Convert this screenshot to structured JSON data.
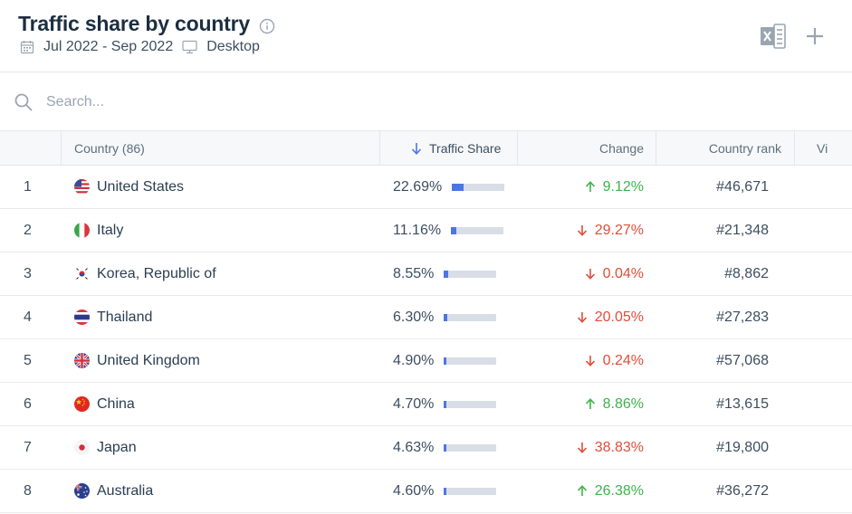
{
  "header": {
    "title": "Traffic share by country",
    "date_range": "Jul 2022 - Sep 2022",
    "device": "Desktop"
  },
  "search": {
    "placeholder": "Search..."
  },
  "table": {
    "columns": {
      "country": "Country (86)",
      "traffic_share": "Traffic Share",
      "change": "Change",
      "country_rank": "Country rank",
      "visits": "Vi"
    },
    "rows": [
      {
        "rank": "1",
        "country": "United States",
        "flag": "us-flag-icon",
        "share": "22.69%",
        "share_value": 22.69,
        "change": "9.12%",
        "direction": "up",
        "country_rank": "#46,671"
      },
      {
        "rank": "2",
        "country": "Italy",
        "flag": "it-flag-icon",
        "share": "11.16%",
        "share_value": 11.16,
        "change": "29.27%",
        "direction": "down",
        "country_rank": "#21,348"
      },
      {
        "rank": "3",
        "country": "Korea, Republic of",
        "flag": "kr-flag-icon",
        "share": "8.55%",
        "share_value": 8.55,
        "change": "0.04%",
        "direction": "down",
        "country_rank": "#8,862"
      },
      {
        "rank": "4",
        "country": "Thailand",
        "flag": "th-flag-icon",
        "share": "6.30%",
        "share_value": 6.3,
        "change": "20.05%",
        "direction": "down",
        "country_rank": "#27,283"
      },
      {
        "rank": "5",
        "country": "United Kingdom",
        "flag": "gb-flag-icon",
        "share": "4.90%",
        "share_value": 4.9,
        "change": "0.24%",
        "direction": "down",
        "country_rank": "#57,068"
      },
      {
        "rank": "6",
        "country": "China",
        "flag": "cn-flag-icon",
        "share": "4.70%",
        "share_value": 4.7,
        "change": "8.86%",
        "direction": "up",
        "country_rank": "#13,615"
      },
      {
        "rank": "7",
        "country": "Japan",
        "flag": "jp-flag-icon",
        "share": "4.63%",
        "share_value": 4.63,
        "change": "38.83%",
        "direction": "down",
        "country_rank": "#19,800"
      },
      {
        "rank": "8",
        "country": "Australia",
        "flag": "au-flag-icon",
        "share": "4.60%",
        "share_value": 4.6,
        "change": "26.38%",
        "direction": "up",
        "country_rank": "#36,272"
      }
    ]
  },
  "colors": {
    "bar_fill": "#4c76e6",
    "bar_bg": "#d9dde6",
    "up": "#3bb349",
    "down": "#e04d3a"
  }
}
